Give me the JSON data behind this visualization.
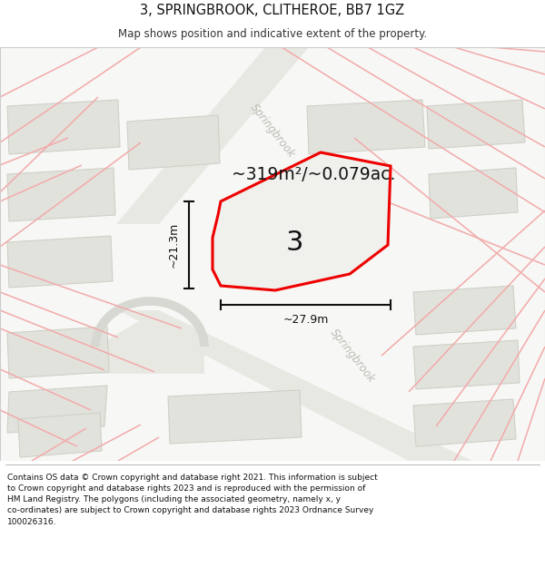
{
  "title": "3, SPRINGBROOK, CLITHEROE, BB7 1GZ",
  "subtitle": "Map shows position and indicative extent of the property.",
  "footer_line1": "Contains OS data © Crown copyright and database right 2021. This information is subject",
  "footer_line2": "to Crown copyright and database rights 2023 and is reproduced with the permission of",
  "footer_line3": "HM Land Registry. The polygons (including the associated geometry, namely x, y",
  "footer_line4": "co-ordinates) are subject to Crown copyright and database rights 2023 Ordnance Survey",
  "footer_line5": "100026316.",
  "area_text": "~319m²/~0.079ac.",
  "dim_h": "~27.9m",
  "dim_v": "~21.3m",
  "plot_num": "3",
  "bg": "#f7f7f5",
  "building_fill": "#e2e2dd",
  "building_edge": "#d0d0c8",
  "road_grey": "#e8e8e3",
  "plot_fill": "#f0f0ec",
  "plot_edge": "#ee0000",
  "pink": "#f2aaaa",
  "road_label": "#bcbcb4",
  "white": "#ffffff",
  "black": "#111111",
  "light_grey_line": "#cccccc"
}
